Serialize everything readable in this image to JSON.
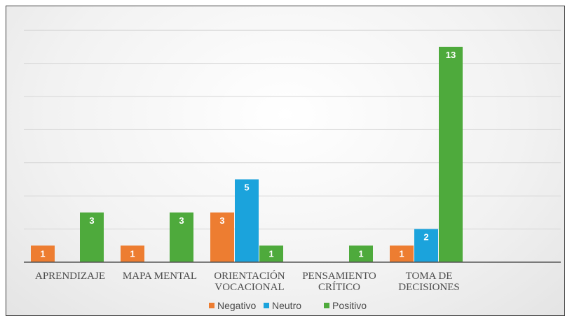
{
  "chart_data": {
    "type": "bar",
    "categories": [
      [
        "APRENDIZAJE"
      ],
      [
        "MAPA MENTAL"
      ],
      [
        "ORIENTACIÓN",
        "VOCACIONAL"
      ],
      [
        "PENSAMIENTO",
        "CRÍTICO"
      ],
      [
        "TOMA DE",
        "DECISIONES"
      ]
    ],
    "series": [
      {
        "name": "Negativo",
        "color": "#ed7d31",
        "values": [
          1,
          1,
          3,
          null,
          1
        ]
      },
      {
        "name": "Neutro",
        "color": "#1ba3dc",
        "values": [
          null,
          null,
          5,
          null,
          2
        ]
      },
      {
        "name": "Positivo",
        "color": "#4eaa3c",
        "values": [
          3,
          3,
          1,
          1,
          13
        ]
      }
    ],
    "ylim": [
      0,
      14
    ],
    "grid": true,
    "legend_position": "bottom"
  }
}
